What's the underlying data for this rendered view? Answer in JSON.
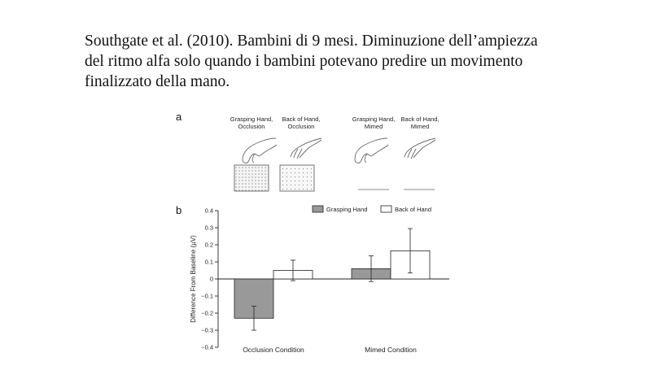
{
  "caption": {
    "line1": "Southgate et al. (2010). Bambini di 9 mesi. Diminuzione dell’ampiezza",
    "line2": "del ritmo alfa solo quando i bambini potevano predire un movimento",
    "line3": "finalizzato della mano."
  },
  "panel_a": {
    "label": "a",
    "stimuli": [
      {
        "line1": "Grasping Hand,",
        "line2": "Occlusion"
      },
      {
        "line1": "Back of Hand,",
        "line2": "Occlusion"
      },
      {
        "line1": "Grasping Hand,",
        "line2": "Mimed"
      },
      {
        "line1": "Back of Hand,",
        "line2": "Mimed"
      }
    ]
  },
  "panel_b": {
    "label": "b"
  },
  "chart_data": {
    "type": "bar",
    "categories": [
      "Occlusion Condition",
      "Mimed Condition"
    ],
    "series": [
      {
        "name": "Grasping Hand",
        "color": "#999999",
        "values": [
          -0.23,
          0.06
        ],
        "error": [
          0.07,
          0.075
        ]
      },
      {
        "name": "Back of Hand",
        "color": "#ffffff",
        "values": [
          0.05,
          0.165
        ],
        "error": [
          0.06,
          0.13
        ]
      }
    ],
    "ylabel": "Difference From Baseline (µV)",
    "xlabel": "",
    "ylim": [
      -0.4,
      0.4
    ],
    "yticks": [
      0.4,
      0.3,
      0.2,
      0.1,
      0,
      -0.1,
      -0.2,
      -0.3,
      -0.4
    ],
    "ytick_labels": [
      "0.4",
      "0.3",
      "0.2",
      "0.1",
      "0",
      "−0.1",
      "−0.2",
      "−0.3",
      "−0.4"
    ],
    "legend": "top-right",
    "grid": false
  }
}
